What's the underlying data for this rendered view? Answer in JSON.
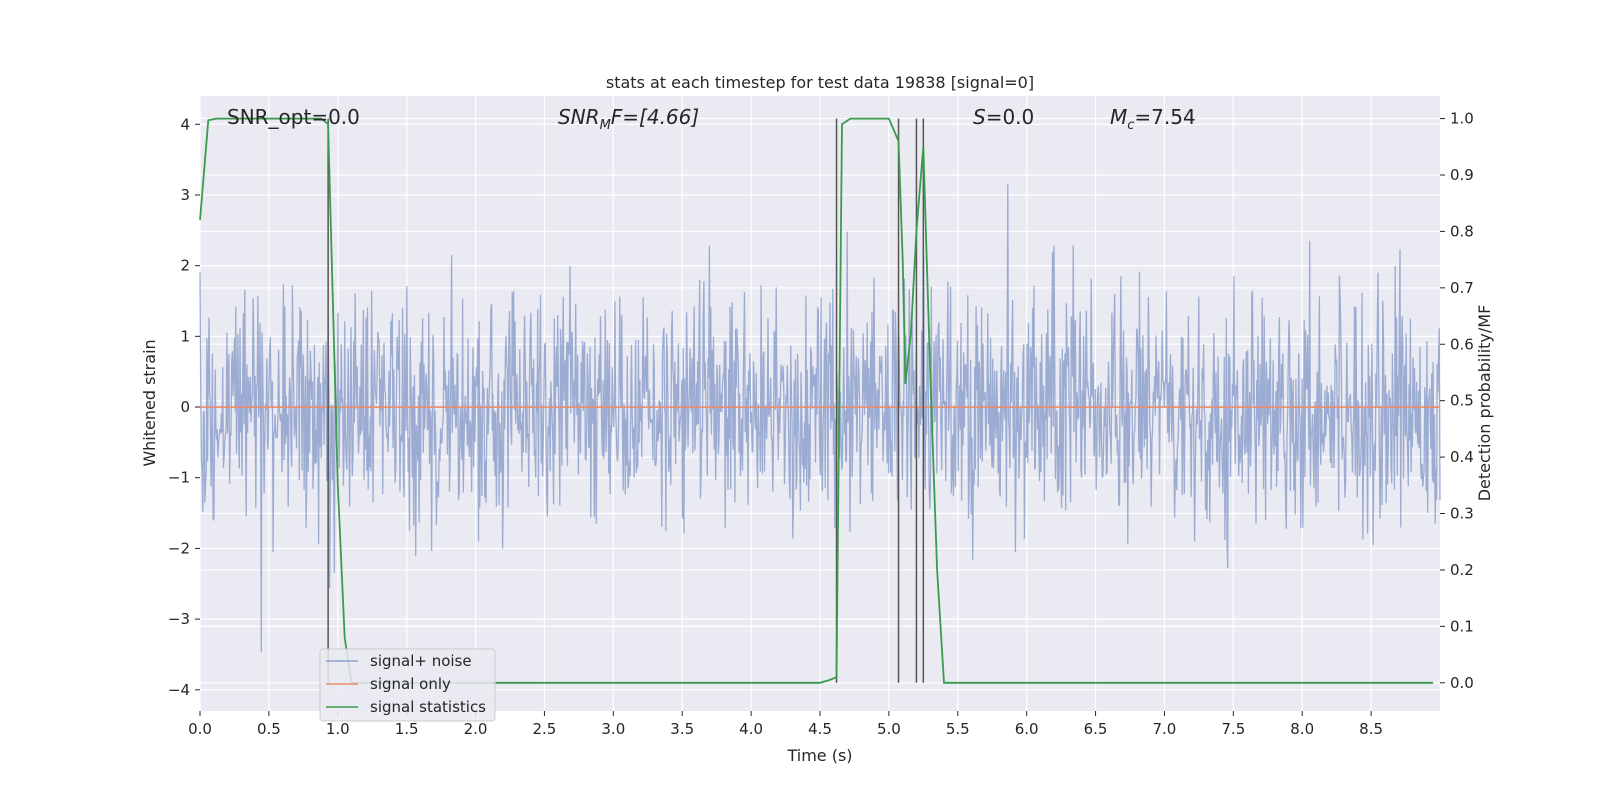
{
  "chart_data": {
    "type": "line",
    "title": "stats at each timestep for test data 19838 [signal=0]",
    "xlabel": "Time (s)",
    "ylabel": "Whitened strain",
    "ylabel_right": "Detection probability/MF",
    "xlim": [
      0.0,
      9.0
    ],
    "ylim": [
      -4.3,
      4.4
    ],
    "ylim_right": [
      -0.05,
      1.04
    ],
    "xticks": [
      0.0,
      0.5,
      1.0,
      1.5,
      2.0,
      2.5,
      3.0,
      3.5,
      4.0,
      4.5,
      5.0,
      5.5,
      6.0,
      6.5,
      7.0,
      7.5,
      8.0,
      8.5
    ],
    "xtick_labels": [
      "0.0",
      "0.5",
      "1.0",
      "1.5",
      "2.0",
      "2.5",
      "3.0",
      "3.5",
      "4.0",
      "4.5",
      "5.0",
      "5.5",
      "6.0",
      "6.5",
      "7.0",
      "7.5",
      "8.0",
      "8.5"
    ],
    "yticks": [
      -4,
      -3,
      -2,
      -1,
      0,
      1,
      2,
      3,
      4
    ],
    "ytick_labels": [
      "−4",
      "−3",
      "−2",
      "−1",
      "0",
      "1",
      "2",
      "3",
      "4"
    ],
    "yticks_right": [
      0.0,
      0.1,
      0.2,
      0.3,
      0.4,
      0.5,
      0.6,
      0.7,
      0.8,
      0.9,
      1.0
    ],
    "ytick_labels_right": [
      "0.0",
      "0.1",
      "0.2",
      "0.3",
      "0.4",
      "0.5",
      "0.6",
      "0.7",
      "0.8",
      "0.9",
      "1.0"
    ],
    "grid": true,
    "legend_position": "lower-left",
    "annotations": {
      "snr_opt": "SNR_opt=0.0",
      "snr_mf_base": "SNR",
      "snr_mf_sub": "M",
      "snr_mf_rest": "F=[4.66]",
      "s_base": "S",
      "s_rest": "=0.0",
      "mc_base": "M",
      "mc_sub": "c",
      "mc_rest": "=7.54"
    },
    "series": [
      {
        "name": "signal+ noise",
        "color": "#8da0cb",
        "axis": "left",
        "kind": "noise",
        "noise_std": 0.82,
        "num_samples": 1800,
        "x_range": [
          0.0,
          9.0
        ]
      },
      {
        "name": "signal only",
        "color": "#e98c6b",
        "axis": "left",
        "x": [
          0.0,
          9.0
        ],
        "y": [
          0.0,
          0.0
        ]
      },
      {
        "name": "signal statistics",
        "color": "#3b9b4d",
        "axis": "right",
        "x": [
          0.0,
          0.06,
          0.12,
          0.3,
          0.6,
          0.88,
          0.93,
          1.0,
          1.05,
          1.1,
          1.2,
          1.5,
          2.0,
          3.0,
          4.0,
          4.5,
          4.57,
          4.62,
          4.66,
          4.72,
          4.9,
          5.0,
          5.07,
          5.1,
          5.12,
          5.16,
          5.2,
          5.25,
          5.3,
          5.35,
          5.4,
          6.0,
          7.0,
          8.0,
          8.95
        ],
        "y": [
          0.82,
          0.997,
          1.0,
          1.0,
          1.0,
          1.0,
          0.99,
          0.35,
          0.08,
          0.0,
          0.0,
          0.0,
          0.0,
          0.0,
          0.0,
          0.0,
          0.005,
          0.01,
          0.99,
          1.0,
          1.0,
          1.0,
          0.96,
          0.75,
          0.53,
          0.62,
          0.8,
          0.95,
          0.55,
          0.2,
          0.0,
          0.0,
          0.0,
          0.0,
          0.0
        ]
      }
    ],
    "vlines": [
      0.93,
      4.62,
      5.07,
      5.2,
      5.25
    ],
    "vlines_range_right": [
      0.0,
      1.0
    ]
  }
}
